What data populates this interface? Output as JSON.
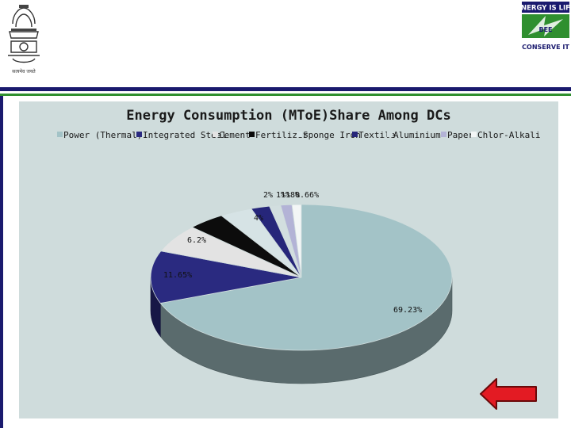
{
  "header": {
    "emblem_caption": "सत्यमेव जयते",
    "logo_text_top": "ENERGY IS LIFE",
    "logo_text_mid": "BEE",
    "logo_text_bottom": "CONSERVE IT"
  },
  "colors": {
    "slide_bg": "#ffffff",
    "chart_bg": "#cfdcdc",
    "rule_blue": "#1a1a6e",
    "rule_green": "#2f8f2f",
    "arrow_red": "#e31b23"
  },
  "chart_data": {
    "type": "pie",
    "title": "Energy Consumption (MToE)Share Among DCs",
    "three_d": true,
    "legend_position": "top",
    "series": [
      {
        "name": "Power (Thermal)",
        "value": 69.23,
        "label": "69.23%",
        "color": "#a3c3c7"
      },
      {
        "name": "Integrated Steel",
        "value": 11.65,
        "label": "11.65%",
        "color": "#2a2a80"
      },
      {
        "name": "Cement",
        "value": 6.2,
        "label": "6.2%",
        "color": "#e3e3e3"
      },
      {
        "name": "Fertilizer",
        "value": 4,
        "label": "4%",
        "color": "#0c0c0c"
      },
      {
        "name": "Sponge Iron",
        "value": 3.5,
        "label": "",
        "color": "#d6e3e5"
      },
      {
        "name": "Textile",
        "value": 2,
        "label": "2%",
        "color": "#26267a"
      },
      {
        "name": "Aluminium",
        "value": 1.2,
        "label": "1%",
        "color": "#d2dedf"
      },
      {
        "name": "Paper",
        "value": 1.2,
        "label": "1%",
        "color": "#b3b3d6"
      },
      {
        "name": "Chlor-Alkali",
        "value": 1,
        "label": "",
        "color": "#f3f6f6"
      }
    ],
    "extra_labels": [
      "18%",
      "0.66%"
    ]
  },
  "navigation": {
    "back_arrow_icon": "left-arrow-icon"
  }
}
